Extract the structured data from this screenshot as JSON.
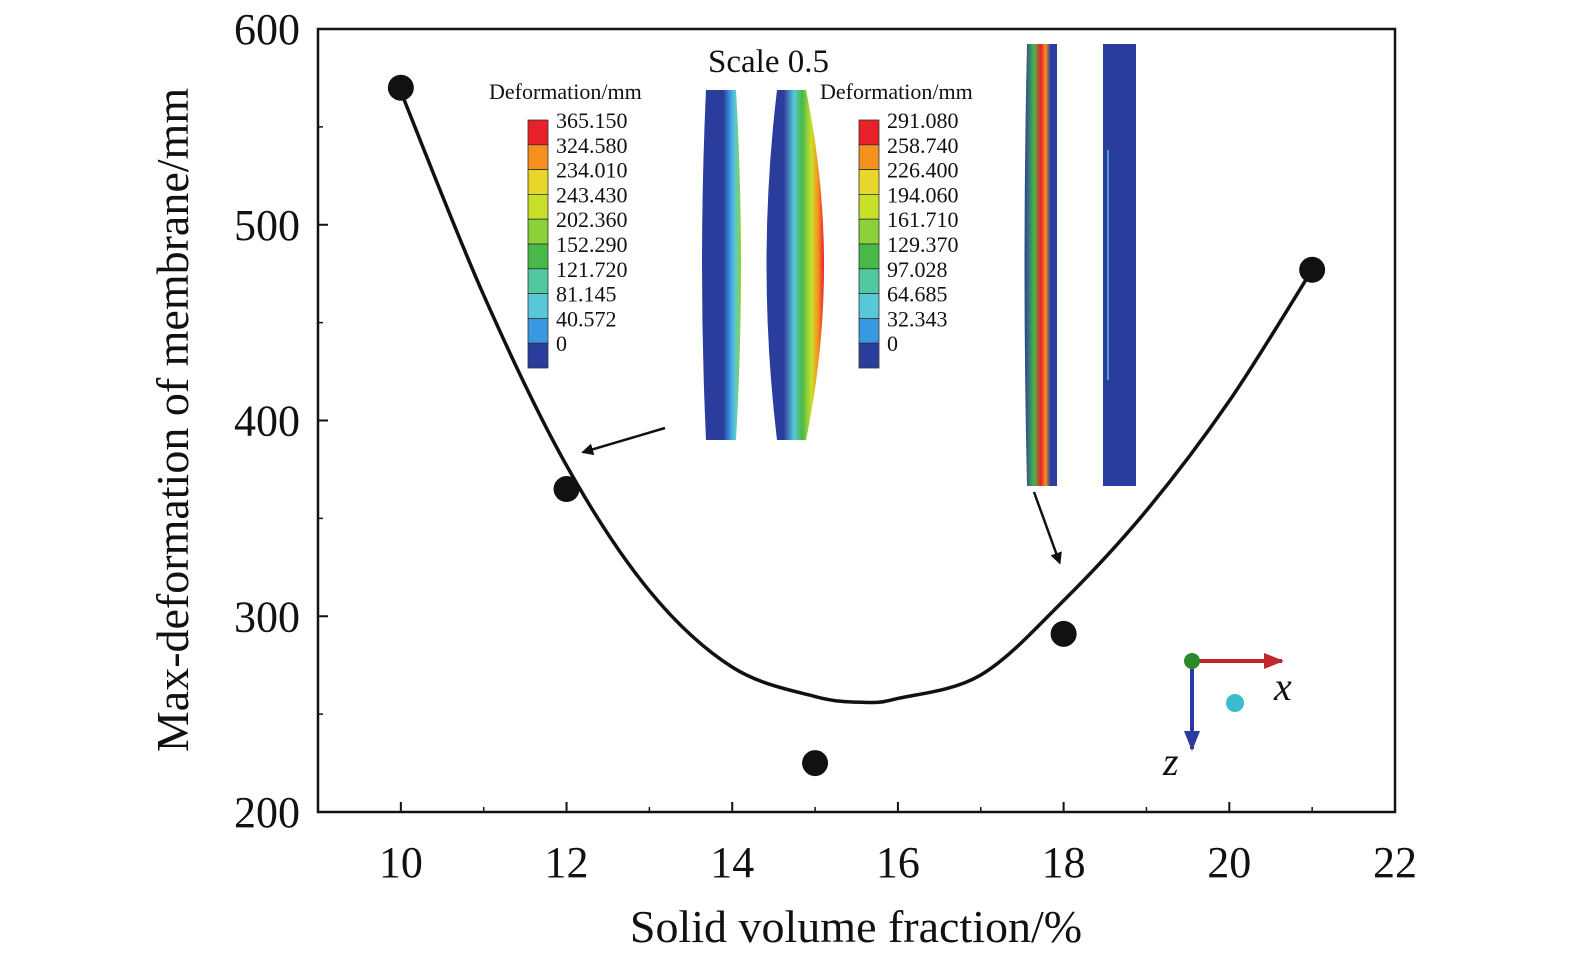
{
  "chart_data": {
    "type": "scatter",
    "xlabel": "Solid volume fraction/%",
    "ylabel": "Max-deformation of membrane/mm",
    "xlim": [
      9,
      22
    ],
    "ylim": [
      200,
      600
    ],
    "xticks": [
      "10",
      "12",
      "14",
      "16",
      "18",
      "20",
      "22"
    ],
    "yticks": [
      "200",
      "300",
      "400",
      "500",
      "600"
    ],
    "grid": false,
    "points": [
      {
        "x": 10,
        "y": 570
      },
      {
        "x": 12,
        "y": 365
      },
      {
        "x": 15,
        "y": 225
      },
      {
        "x": 18,
        "y": 291
      },
      {
        "x": 21,
        "y": 477
      }
    ],
    "fit_curve": [
      {
        "x": 10,
        "y": 568
      },
      {
        "x": 11,
        "y": 464
      },
      {
        "x": 12,
        "y": 377
      },
      {
        "x": 13,
        "y": 313
      },
      {
        "x": 14,
        "y": 274
      },
      {
        "x": 15,
        "y": 259
      },
      {
        "x": 15.6,
        "y": 256
      },
      {
        "x": 16,
        "y": 258
      },
      {
        "x": 17,
        "y": 270
      },
      {
        "x": 18,
        "y": 308
      },
      {
        "x": 19,
        "y": 354
      },
      {
        "x": 20,
        "y": 410
      },
      {
        "x": 21,
        "y": 477
      }
    ],
    "annotation_scale": "Scale 0.5",
    "insets": [
      {
        "legend_title": "Deformation/mm",
        "values": [
          "365.150",
          "324.580",
          "234.010",
          "243.430",
          "202.360",
          "152.290",
          "121.720",
          "81.145",
          "40.572",
          "0"
        ],
        "points_to": {
          "x": 12.2,
          "y": 370
        }
      },
      {
        "legend_title": "Deformation/mm",
        "values": [
          "291.080",
          "258.740",
          "226.400",
          "194.060",
          "161.710",
          "129.370",
          "97.028",
          "64.685",
          "32.343",
          "0"
        ],
        "points_to": {
          "x": 18,
          "y": 312
        }
      }
    ],
    "colorbar_colors": [
      "#e8202a",
      "#f5901e",
      "#e8d62a",
      "#c8e02a",
      "#8cd03a",
      "#48b848",
      "#52c8a0",
      "#58c8d8",
      "#3a98e0",
      "#2b3d9c"
    ],
    "coord_axes": {
      "x_label": "x",
      "z_label": "z"
    },
    "colors": {
      "marker": "#111111",
      "curve": "#111111",
      "membrane": "#2b3d9c",
      "x_axis_arrow": "#c0262c",
      "z_axis_arrow": "#2c3a9c",
      "origin_dot": "#2a8a2a",
      "y_dot": "#3bbccc"
    }
  }
}
